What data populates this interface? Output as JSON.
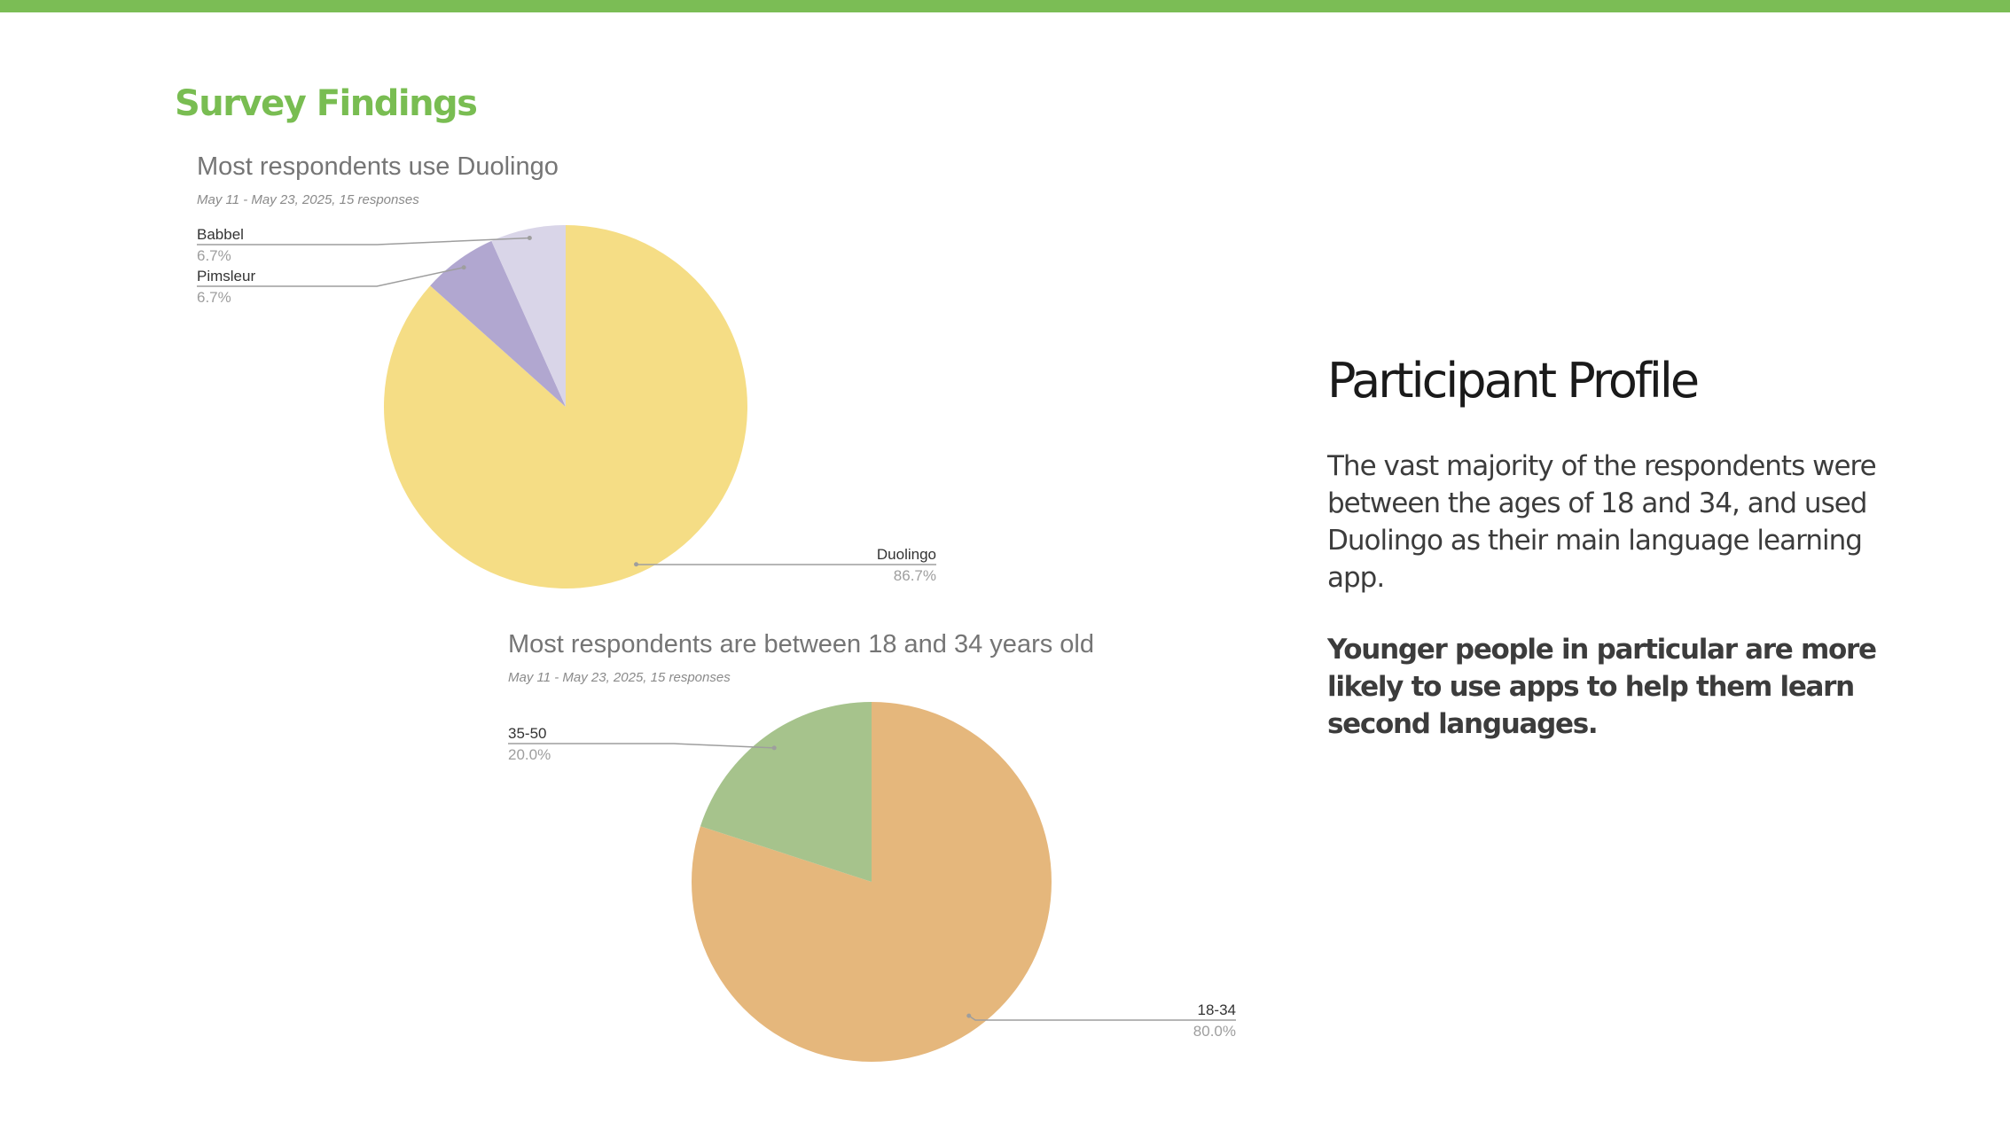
{
  "slide": {
    "section_title": "Survey Findings",
    "profile_title": "Participant Profile",
    "profile_body": "The vast majority of the respondents were between the ages of 18 and 34, and used Duolingo as their main language learning app.",
    "profile_emphasis": "Younger people in particular are more likely to use apps to help them learn second languages.",
    "accent_color": "#7bbd55"
  },
  "chart_data": [
    {
      "type": "pie",
      "title": "Most respondents use Duolingo",
      "subtitle": "May 11 - May 23, 2025, 15 responses",
      "categories": [
        "Duolingo",
        "Pimsleur",
        "Babbel"
      ],
      "values": [
        86.7,
        6.7,
        6.7
      ],
      "labels": [
        "86.7%",
        "6.7%",
        "6.7%"
      ],
      "colors": [
        "#f5dd85",
        "#b1a7d0",
        "#d9d5e8"
      ]
    },
    {
      "type": "pie",
      "title": "Most respondents are between 18 and 34 years old",
      "subtitle": "May 11 - May 23, 2025, 15 responses",
      "categories": [
        "18-34",
        "35-50"
      ],
      "values": [
        80.0,
        20.0
      ],
      "labels": [
        "80.0%",
        "20.0%"
      ],
      "colors": [
        "#e5b77c",
        "#a6c38c"
      ]
    }
  ]
}
